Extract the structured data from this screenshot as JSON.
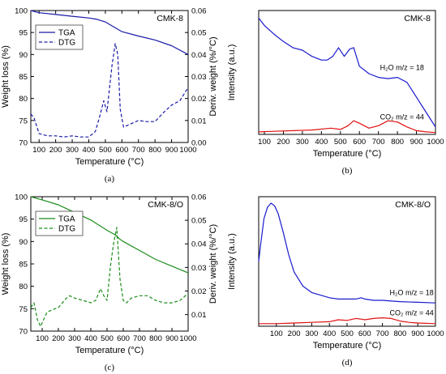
{
  "chart_data": [
    {
      "id": "a",
      "type": "line",
      "caption": "(a)",
      "title": "CMK-8",
      "xlabel": "Temperature (°C)",
      "ylabel": "Weight loss (%)",
      "ylabel_right": "Deriv. weight (%/°C)",
      "xlim": [
        50,
        1000
      ],
      "ylim": [
        70,
        100
      ],
      "ylim_right": [
        0.0,
        0.06
      ],
      "xticks": [
        100,
        200,
        300,
        400,
        500,
        600,
        700,
        800,
        900,
        1000
      ],
      "yticks": [
        70,
        75,
        80,
        85,
        90,
        95,
        100
      ],
      "yticks_right": [
        0.0,
        0.01,
        0.02,
        0.03,
        0.04,
        0.05,
        0.06
      ],
      "legend": "top-left",
      "color": "#1a1aa8",
      "series": [
        {
          "name": "TGA",
          "axis": "left",
          "style": "solid",
          "x": [
            50,
            100,
            200,
            300,
            400,
            450,
            500,
            550,
            600,
            700,
            800,
            900,
            1000
          ],
          "y": [
            100,
            99.5,
            99.1,
            98.7,
            98.3,
            98.0,
            97.4,
            96.3,
            95.2,
            94.2,
            93.3,
            92.0,
            90.0
          ]
        },
        {
          "name": "DTG",
          "axis": "right",
          "style": "dashed",
          "x": [
            50,
            70,
            100,
            150,
            200,
            250,
            300,
            350,
            400,
            440,
            470,
            490,
            510,
            540,
            560,
            575,
            590,
            610,
            640,
            700,
            750,
            800,
            850,
            900,
            950,
            1000
          ],
          "y": [
            0.013,
            0.011,
            0.004,
            0.003,
            0.003,
            0.0025,
            0.003,
            0.0025,
            0.0025,
            0.005,
            0.013,
            0.019,
            0.014,
            0.035,
            0.045,
            0.04,
            0.015,
            0.007,
            0.008,
            0.01,
            0.0095,
            0.0095,
            0.0135,
            0.017,
            0.019,
            0.025
          ]
        }
      ]
    },
    {
      "id": "b",
      "type": "line",
      "caption": "(b)",
      "title": "CMK-8",
      "xlabel": "Temperature (°C)",
      "ylabel": "Intensity (a.u.)",
      "xlim": [
        70,
        1000
      ],
      "ylim": [
        0,
        1
      ],
      "xticks": [
        100,
        200,
        300,
        400,
        500,
        600,
        700,
        800,
        900,
        1000
      ],
      "series": [
        {
          "name": "H₂O m/z = 18",
          "color": "#1a1acd",
          "x": [
            70,
            100,
            150,
            200,
            250,
            300,
            350,
            400,
            430,
            460,
            490,
            520,
            550,
            570,
            600,
            650,
            700,
            750,
            800,
            850,
            900,
            950,
            1000
          ],
          "y": [
            0.94,
            0.88,
            0.81,
            0.75,
            0.7,
            0.68,
            0.63,
            0.6,
            0.6,
            0.63,
            0.7,
            0.63,
            0.69,
            0.7,
            0.55,
            0.49,
            0.46,
            0.45,
            0.46,
            0.42,
            0.3,
            0.18,
            0.06
          ]
        },
        {
          "name": "CO₂ m/z = 44",
          "color": "#e01010",
          "x": [
            70,
            150,
            250,
            350,
            450,
            500,
            540,
            570,
            600,
            650,
            700,
            750,
            800,
            850,
            900,
            950,
            1000
          ],
          "y": [
            0.02,
            0.025,
            0.03,
            0.035,
            0.05,
            0.04,
            0.07,
            0.11,
            0.09,
            0.05,
            0.07,
            0.11,
            0.1,
            0.06,
            0.03,
            0.02,
            0.015
          ]
        }
      ]
    },
    {
      "id": "c",
      "type": "line",
      "caption": "(c)",
      "title": "CMK-8/O",
      "xlabel": "Temperature (°C)",
      "ylabel": "Weight loss (%)",
      "ylabel_right": "Deriv. weight (%/°C)",
      "xlim": [
        30,
        1000
      ],
      "ylim": [
        70,
        100
      ],
      "ylim_right": [
        0.003,
        0.06
      ],
      "xticks": [
        100,
        200,
        300,
        400,
        500,
        600,
        700,
        800,
        900,
        1000
      ],
      "yticks": [
        70,
        75,
        80,
        85,
        90,
        95,
        100
      ],
      "yticks_right": [
        0.01,
        0.02,
        0.03,
        0.04,
        0.05,
        0.06
      ],
      "legend": "top-left",
      "color": "#1a8c1a",
      "series": [
        {
          "name": "TGA",
          "axis": "left",
          "style": "solid",
          "x": [
            30,
            100,
            200,
            300,
            400,
            500,
            550,
            580,
            600,
            700,
            800,
            900,
            1000
          ],
          "y": [
            100,
            99.3,
            98.2,
            96.5,
            94.8,
            92.5,
            91.5,
            90.5,
            90.0,
            88.0,
            86.0,
            84.5,
            83.0
          ]
        },
        {
          "name": "DTG",
          "axis": "right",
          "style": "dashed",
          "x": [
            30,
            50,
            70,
            90,
            110,
            130,
            160,
            200,
            250,
            270,
            300,
            350,
            400,
            430,
            460,
            480,
            500,
            520,
            540,
            560,
            580,
            600,
            620,
            650,
            700,
            750,
            800,
            850,
            900,
            950,
            1000
          ],
          "y": [
            0.013,
            0.015,
            0.008,
            0.005,
            0.008,
            0.011,
            0.012,
            0.013,
            0.017,
            0.018,
            0.017,
            0.016,
            0.015,
            0.016,
            0.021,
            0.018,
            0.016,
            0.03,
            0.04,
            0.047,
            0.025,
            0.016,
            0.015,
            0.017,
            0.018,
            0.018,
            0.016,
            0.015,
            0.015,
            0.016,
            0.019
          ]
        }
      ]
    },
    {
      "id": "d",
      "type": "line",
      "caption": "(d)",
      "title": "CMK-8/O",
      "xlabel": "Temperature (°C)",
      "ylabel": "Intensity (a.u.)",
      "xlim": [
        0,
        1000
      ],
      "ylim": [
        0,
        1
      ],
      "xticks": [
        100,
        200,
        300,
        400,
        500,
        600,
        700,
        800,
        900,
        1000
      ],
      "series": [
        {
          "name": "H₂O m/z = 18",
          "color": "#1a1acd",
          "x": [
            0,
            10,
            30,
            50,
            70,
            90,
            110,
            140,
            170,
            200,
            250,
            300,
            350,
            400,
            450,
            500,
            550,
            580,
            600,
            650,
            700,
            800,
            900,
            1000
          ],
          "y": [
            0.5,
            0.62,
            0.83,
            0.92,
            0.95,
            0.93,
            0.87,
            0.72,
            0.55,
            0.42,
            0.31,
            0.26,
            0.24,
            0.22,
            0.21,
            0.21,
            0.21,
            0.22,
            0.21,
            0.2,
            0.2,
            0.19,
            0.185,
            0.18
          ]
        },
        {
          "name": "CO₂ m/z = 44",
          "color": "#e01010",
          "x": [
            0,
            100,
            200,
            300,
            400,
            450,
            500,
            550,
            580,
            600,
            650,
            700,
            750,
            800,
            850,
            900,
            1000
          ],
          "y": [
            0.02,
            0.02,
            0.025,
            0.03,
            0.035,
            0.05,
            0.045,
            0.06,
            0.055,
            0.05,
            0.06,
            0.065,
            0.06,
            0.04,
            0.03,
            0.025,
            0.02
          ]
        }
      ]
    }
  ]
}
